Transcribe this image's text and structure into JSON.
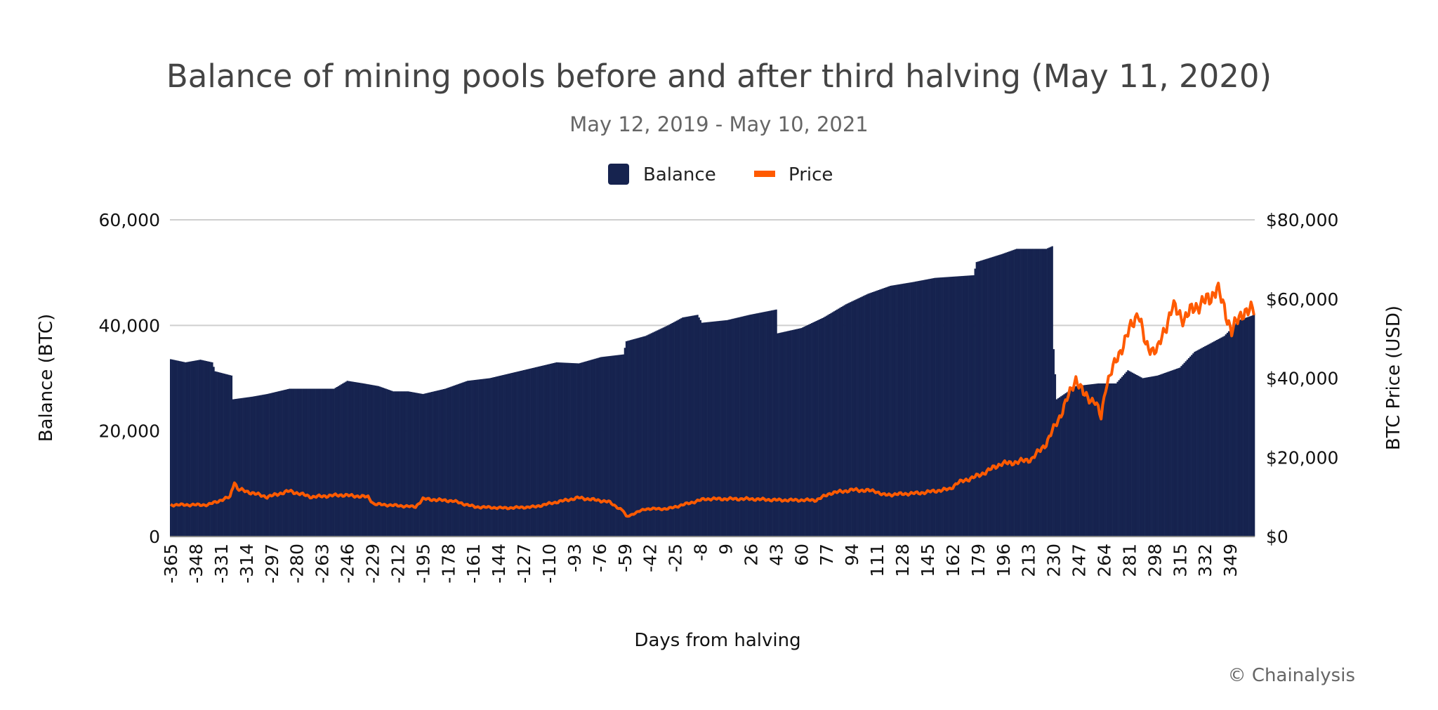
{
  "chart_data": {
    "type": "bar+line",
    "title": "Balance of mining pools before and after third halving (May 11, 2020)",
    "subtitle": "May 12, 2019 - May 10, 2021",
    "xlabel": "Days from halving",
    "ylabel_left": "Balance (BTC)",
    "ylabel_right": "BTC Price (USD)",
    "ylim_left": [
      0,
      60000
    ],
    "ylim_right": [
      0,
      80000
    ],
    "xlim": [
      -365,
      365
    ],
    "grid": true,
    "legend_position": "top",
    "left_ticks": [
      "0",
      "20,000",
      "40,000",
      "60,000"
    ],
    "right_ticks": [
      "$0",
      "$20,000",
      "$40,000",
      "$60,000",
      "$80,000"
    ],
    "x_ticks": [
      "-365",
      "-348",
      "-331",
      "-314",
      "-297",
      "-280",
      "-263",
      "-246",
      "-229",
      "-212",
      "-195",
      "-178",
      "-161",
      "-144",
      "-127",
      "-110",
      "-93",
      "-76",
      "-59",
      "-42",
      "-25",
      "-8",
      "9",
      "26",
      "43",
      "60",
      "77",
      "94",
      "111",
      "128",
      "145",
      "162",
      "179",
      "196",
      "213",
      "230",
      "247",
      "264",
      "281",
      "298",
      "315",
      "332",
      "349"
    ],
    "series": [
      {
        "name": "Balance",
        "type": "bar",
        "color": "#16234f",
        "axis": "left",
        "points": [
          [
            -365,
            33600
          ],
          [
            -355,
            33000
          ],
          [
            -345,
            33500
          ],
          [
            -337,
            33000
          ],
          [
            -335,
            31300
          ],
          [
            -324,
            30500
          ],
          [
            -323,
            26000
          ],
          [
            -310,
            26500
          ],
          [
            -300,
            27000
          ],
          [
            -285,
            28000
          ],
          [
            -270,
            28000
          ],
          [
            -255,
            28000
          ],
          [
            -246,
            29500
          ],
          [
            -235,
            29000
          ],
          [
            -225,
            28500
          ],
          [
            -215,
            27500
          ],
          [
            -205,
            27500
          ],
          [
            -195,
            27000
          ],
          [
            -180,
            28000
          ],
          [
            -165,
            29500
          ],
          [
            -150,
            30000
          ],
          [
            -135,
            31000
          ],
          [
            -120,
            32000
          ],
          [
            -105,
            33000
          ],
          [
            -90,
            32800
          ],
          [
            -75,
            34000
          ],
          [
            -60,
            34500
          ],
          [
            -58,
            37000
          ],
          [
            -45,
            38000
          ],
          [
            -30,
            40000
          ],
          [
            -20,
            41500
          ],
          [
            -10,
            42000
          ],
          [
            -7,
            40500
          ],
          [
            10,
            41000
          ],
          [
            25,
            42000
          ],
          [
            43,
            43000
          ],
          [
            44,
            38500
          ],
          [
            60,
            39500
          ],
          [
            75,
            41500
          ],
          [
            90,
            44000
          ],
          [
            105,
            46000
          ],
          [
            120,
            47500
          ],
          [
            135,
            48200
          ],
          [
            150,
            49000
          ],
          [
            176,
            49500
          ],
          [
            178,
            52000
          ],
          [
            195,
            53500
          ],
          [
            205,
            54500
          ],
          [
            225,
            54500
          ],
          [
            229,
            55000
          ],
          [
            230,
            35500
          ],
          [
            232,
            26000
          ],
          [
            245,
            28500
          ],
          [
            260,
            29000
          ],
          [
            272,
            29000
          ],
          [
            280,
            31500
          ],
          [
            290,
            30000
          ],
          [
            300,
            30500
          ],
          [
            315,
            32000
          ],
          [
            325,
            35000
          ],
          [
            335,
            36500
          ],
          [
            345,
            38000
          ],
          [
            355,
            41000
          ],
          [
            365,
            42000
          ]
        ]
      },
      {
        "name": "Price",
        "type": "line",
        "color": "#ff5a00",
        "axis": "right",
        "points": [
          [
            -365,
            8000
          ],
          [
            -340,
            8000
          ],
          [
            -325,
            10000
          ],
          [
            -322,
            14000
          ],
          [
            -320,
            12000
          ],
          [
            -300,
            10000
          ],
          [
            -285,
            11500
          ],
          [
            -270,
            10000
          ],
          [
            -250,
            10500
          ],
          [
            -232,
            10000
          ],
          [
            -228,
            8200
          ],
          [
            -200,
            7500
          ],
          [
            -195,
            9500
          ],
          [
            -175,
            9000
          ],
          [
            -160,
            7500
          ],
          [
            -140,
            7200
          ],
          [
            -120,
            7500
          ],
          [
            -105,
            8700
          ],
          [
            -90,
            9800
          ],
          [
            -70,
            8800
          ],
          [
            -60,
            6500
          ],
          [
            -58,
            5000
          ],
          [
            -45,
            7000
          ],
          [
            -30,
            7000
          ],
          [
            -15,
            8500
          ],
          [
            -5,
            9500
          ],
          [
            10,
            9500
          ],
          [
            25,
            9500
          ],
          [
            45,
            9200
          ],
          [
            70,
            9200
          ],
          [
            80,
            11000
          ],
          [
            95,
            11800
          ],
          [
            110,
            11500
          ],
          [
            115,
            10500
          ],
          [
            140,
            11000
          ],
          [
            160,
            12000
          ],
          [
            165,
            13500
          ],
          [
            180,
            15500
          ],
          [
            195,
            18500
          ],
          [
            200,
            18500
          ],
          [
            215,
            19500
          ],
          [
            225,
            23500
          ],
          [
            235,
            31000
          ],
          [
            245,
            40000
          ],
          [
            250,
            36000
          ],
          [
            258,
            34000
          ],
          [
            262,
            30000
          ],
          [
            265,
            38000
          ],
          [
            275,
            47000
          ],
          [
            287,
            57000
          ],
          [
            292,
            48000
          ],
          [
            300,
            47000
          ],
          [
            310,
            58000
          ],
          [
            318,
            55000
          ],
          [
            325,
            58000
          ],
          [
            335,
            60000
          ],
          [
            340,
            63000
          ],
          [
            350,
            52000
          ],
          [
            358,
            57000
          ],
          [
            365,
            57000
          ]
        ]
      }
    ]
  },
  "credit": "© Chainalysis"
}
